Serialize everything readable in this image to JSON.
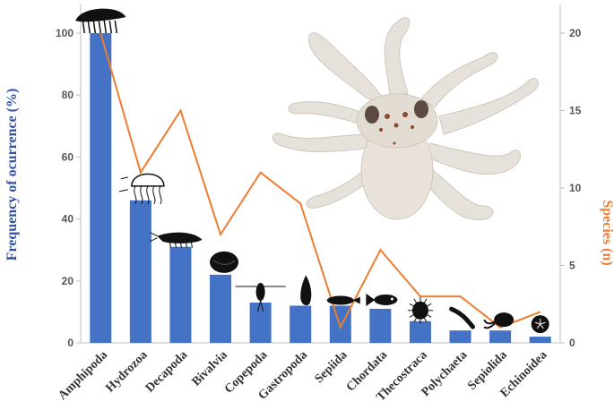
{
  "colors": {
    "bar": "#4472C4",
    "line": "#ED7D31",
    "left_axis_title": "#2F52A8",
    "right_axis_title": "#ED7D31",
    "axis": "#BFBFBF",
    "octopus_body": "#E6E1DA",
    "octopus_spots": "#8B4A2E",
    "silhouette": "#111111"
  },
  "chart_data": {
    "type": "bar",
    "categories": [
      "Amphipoda",
      "Hydrozoa",
      "Decapoda",
      "Bivalvia",
      "Copepoda",
      "Gastropoda",
      "Sepiida",
      "Chordata",
      "Thecostraca",
      "Polychaeta",
      "Sepiolida",
      "Echinoidea"
    ],
    "series": [
      {
        "name": "",
        "kind": "bar",
        "axis": "left",
        "values": [
          100,
          46,
          31,
          22,
          13,
          12,
          12,
          11,
          7,
          4,
          4,
          2
        ]
      },
      {
        "name": "",
        "kind": "line",
        "axis": "right",
        "values": [
          20,
          11,
          15,
          7,
          11,
          9,
          1,
          6,
          3,
          3,
          1,
          2
        ]
      }
    ],
    "ylabel": "Frequency of ocurrence (%)",
    "y2label": "Species (n)",
    "ylim": [
      0,
      100
    ],
    "y2lim": [
      0,
      22
    ],
    "yticks": [
      "0",
      "20",
      "40",
      "60",
      "80",
      "100"
    ],
    "y2ticks": [
      "0",
      "5",
      "10",
      "15",
      "20"
    ],
    "grid": false,
    "legend": "none",
    "category_icons": [
      "amphipod-icon",
      "jellyfish-icon",
      "shrimp-icon",
      "clam-icon",
      "copepod-icon",
      "snail-icon",
      "cuttlefish-icon",
      "fish-icon",
      "barnacle-icon",
      "worm-icon",
      "bobtail-squid-icon",
      "sand-dollar-icon"
    ],
    "photo": "octopus-photo"
  }
}
